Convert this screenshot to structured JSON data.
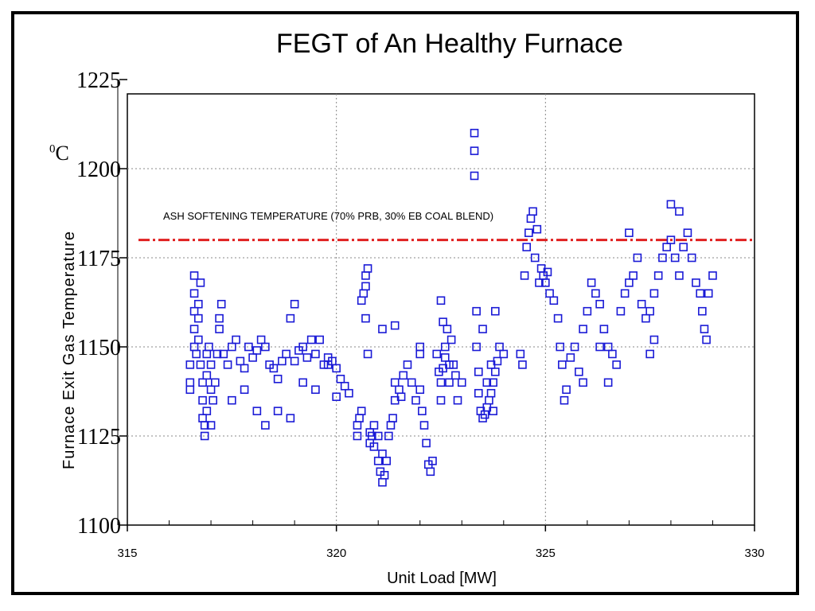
{
  "chart_data": {
    "type": "scatter",
    "title": "FEGT of An Healthy Furnace",
    "xlabel": "Unit Load [MW]",
    "ylabel": "Furnace Exit Gas Temperature",
    "y_unit_base": "C",
    "y_unit_sup": "0",
    "xlim": [
      315,
      330
    ],
    "ylim": [
      1100,
      1225
    ],
    "x_ticks": [
      315,
      320,
      325,
      330
    ],
    "y_ticks": [
      1100,
      1125,
      1150,
      1175,
      1200,
      1225
    ],
    "grid": true,
    "marker": "open-square",
    "marker_color": "#1a1ad6",
    "reference_line": {
      "label": "ASH SOFTENING TEMPERATURE (70% PRB, 30% EB COAL BLEND)",
      "y": 1180,
      "color": "#e02020"
    },
    "points": [
      [
        316.5,
        1140
      ],
      [
        316.5,
        1145
      ],
      [
        316.5,
        1138
      ],
      [
        316.6,
        1150
      ],
      [
        316.6,
        1155
      ],
      [
        316.6,
        1160
      ],
      [
        316.6,
        1165
      ],
      [
        316.6,
        1170
      ],
      [
        316.65,
        1148
      ],
      [
        316.7,
        1162
      ],
      [
        316.7,
        1158
      ],
      [
        316.7,
        1152
      ],
      [
        316.75,
        1145
      ],
      [
        316.75,
        1168
      ],
      [
        316.8,
        1140
      ],
      [
        316.8,
        1135
      ],
      [
        316.8,
        1130
      ],
      [
        316.85,
        1125
      ],
      [
        316.85,
        1128
      ],
      [
        316.9,
        1132
      ],
      [
        316.9,
        1142
      ],
      [
        316.9,
        1148
      ],
      [
        316.95,
        1150
      ],
      [
        317.0,
        1145
      ],
      [
        317.0,
        1138
      ],
      [
        317.0,
        1128
      ],
      [
        317.05,
        1135
      ],
      [
        317.1,
        1140
      ],
      [
        317.15,
        1148
      ],
      [
        317.2,
        1155
      ],
      [
        317.2,
        1158
      ],
      [
        317.25,
        1162
      ],
      [
        317.3,
        1148
      ],
      [
        317.4,
        1145
      ],
      [
        317.5,
        1150
      ],
      [
        317.6,
        1152
      ],
      [
        317.7,
        1146
      ],
      [
        317.8,
        1144
      ],
      [
        317.9,
        1150
      ],
      [
        318.0,
        1147
      ],
      [
        318.1,
        1149
      ],
      [
        318.2,
        1152
      ],
      [
        318.3,
        1150
      ],
      [
        318.4,
        1145
      ],
      [
        318.5,
        1144
      ],
      [
        318.6,
        1141
      ],
      [
        318.7,
        1146
      ],
      [
        318.8,
        1148
      ],
      [
        318.9,
        1158
      ],
      [
        319.0,
        1162
      ],
      [
        319.0,
        1146
      ],
      [
        319.1,
        1149
      ],
      [
        319.2,
        1150
      ],
      [
        319.3,
        1147
      ],
      [
        319.4,
        1152
      ],
      [
        319.5,
        1148
      ],
      [
        319.6,
        1152
      ],
      [
        319.7,
        1145
      ],
      [
        319.8,
        1147
      ],
      [
        319.9,
        1146
      ],
      [
        320.0,
        1144
      ],
      [
        320.1,
        1141
      ],
      [
        320.2,
        1139
      ],
      [
        320.3,
        1137
      ],
      [
        317.5,
        1135
      ],
      [
        317.8,
        1138
      ],
      [
        318.1,
        1132
      ],
      [
        318.3,
        1128
      ],
      [
        318.6,
        1132
      ],
      [
        318.9,
        1130
      ],
      [
        319.2,
        1140
      ],
      [
        319.5,
        1138
      ],
      [
        319.8,
        1145
      ],
      [
        320.0,
        1136
      ],
      [
        320.5,
        1128
      ],
      [
        320.5,
        1125
      ],
      [
        320.55,
        1130
      ],
      [
        320.6,
        1132
      ],
      [
        320.6,
        1163
      ],
      [
        320.65,
        1165
      ],
      [
        320.7,
        1167
      ],
      [
        320.7,
        1170
      ],
      [
        320.75,
        1172
      ],
      [
        320.7,
        1158
      ],
      [
        320.75,
        1148
      ],
      [
        320.8,
        1126
      ],
      [
        320.8,
        1123
      ],
      [
        320.85,
        1125
      ],
      [
        320.9,
        1122
      ],
      [
        320.9,
        1128
      ],
      [
        321.0,
        1125
      ],
      [
        321.0,
        1118
      ],
      [
        321.05,
        1115
      ],
      [
        321.1,
        1112
      ],
      [
        321.1,
        1120
      ],
      [
        321.15,
        1114
      ],
      [
        321.2,
        1118
      ],
      [
        321.25,
        1125
      ],
      [
        321.3,
        1128
      ],
      [
        321.35,
        1130
      ],
      [
        321.4,
        1135
      ],
      [
        321.4,
        1140
      ],
      [
        321.5,
        1138
      ],
      [
        321.55,
        1136
      ],
      [
        321.6,
        1142
      ],
      [
        321.7,
        1145
      ],
      [
        321.8,
        1140
      ],
      [
        321.9,
        1135
      ],
      [
        322.0,
        1150
      ],
      [
        322.0,
        1138
      ],
      [
        322.05,
        1132
      ],
      [
        322.1,
        1128
      ],
      [
        322.15,
        1123
      ],
      [
        322.2,
        1117
      ],
      [
        322.25,
        1115
      ],
      [
        322.3,
        1118
      ],
      [
        321.1,
        1155
      ],
      [
        321.4,
        1156
      ],
      [
        322.0,
        1148
      ],
      [
        322.4,
        1148
      ],
      [
        322.45,
        1143
      ],
      [
        322.5,
        1140
      ],
      [
        322.5,
        1135
      ],
      [
        322.55,
        1144
      ],
      [
        322.6,
        1147
      ],
      [
        322.6,
        1150
      ],
      [
        322.65,
        1155
      ],
      [
        322.7,
        1145
      ],
      [
        322.7,
        1140
      ],
      [
        322.75,
        1152
      ],
      [
        322.8,
        1145
      ],
      [
        322.85,
        1142
      ],
      [
        322.5,
        1163
      ],
      [
        322.55,
        1157
      ],
      [
        322.9,
        1135
      ],
      [
        323.0,
        1140
      ],
      [
        323.3,
        1205
      ],
      [
        323.3,
        1210
      ],
      [
        323.3,
        1198
      ],
      [
        323.35,
        1160
      ],
      [
        323.35,
        1150
      ],
      [
        323.4,
        1143
      ],
      [
        323.4,
        1137
      ],
      [
        323.45,
        1132
      ],
      [
        323.5,
        1130
      ],
      [
        323.55,
        1131
      ],
      [
        323.6,
        1133
      ],
      [
        323.65,
        1135
      ],
      [
        323.7,
        1137
      ],
      [
        323.75,
        1140
      ],
      [
        323.8,
        1143
      ],
      [
        323.85,
        1146
      ],
      [
        323.9,
        1150
      ],
      [
        323.5,
        1155
      ],
      [
        323.8,
        1160
      ],
      [
        324.0,
        1148
      ],
      [
        323.6,
        1140
      ],
      [
        323.7,
        1145
      ],
      [
        323.75,
        1132
      ],
      [
        324.4,
        1148
      ],
      [
        324.45,
        1145
      ],
      [
        324.5,
        1170
      ],
      [
        324.55,
        1178
      ],
      [
        324.6,
        1182
      ],
      [
        324.65,
        1186
      ],
      [
        324.7,
        1188
      ],
      [
        324.75,
        1175
      ],
      [
        324.8,
        1183
      ],
      [
        324.85,
        1168
      ],
      [
        324.9,
        1172
      ],
      [
        324.95,
        1170
      ],
      [
        325.0,
        1168
      ],
      [
        325.05,
        1171
      ],
      [
        325.1,
        1165
      ],
      [
        325.2,
        1163
      ],
      [
        325.3,
        1158
      ],
      [
        325.35,
        1150
      ],
      [
        325.4,
        1145
      ],
      [
        325.45,
        1135
      ],
      [
        325.5,
        1138
      ],
      [
        325.6,
        1147
      ],
      [
        325.7,
        1150
      ],
      [
        325.8,
        1143
      ],
      [
        325.9,
        1140
      ],
      [
        326.0,
        1160
      ],
      [
        326.1,
        1168
      ],
      [
        326.2,
        1165
      ],
      [
        326.3,
        1162
      ],
      [
        326.4,
        1155
      ],
      [
        326.5,
        1150
      ],
      [
        326.6,
        1148
      ],
      [
        326.7,
        1145
      ],
      [
        326.8,
        1160
      ],
      [
        326.9,
        1165
      ],
      [
        327.0,
        1168
      ],
      [
        327.1,
        1170
      ],
      [
        327.2,
        1175
      ],
      [
        327.0,
        1182
      ],
      [
        327.3,
        1162
      ],
      [
        327.4,
        1158
      ],
      [
        327.5,
        1160
      ],
      [
        327.6,
        1165
      ],
      [
        327.7,
        1170
      ],
      [
        327.8,
        1175
      ],
      [
        327.9,
        1178
      ],
      [
        328.0,
        1180
      ],
      [
        328.1,
        1175
      ],
      [
        328.2,
        1170
      ],
      [
        328.3,
        1178
      ],
      [
        328.4,
        1182
      ],
      [
        328.5,
        1175
      ],
      [
        328.6,
        1168
      ],
      [
        328.7,
        1165
      ],
      [
        328.75,
        1160
      ],
      [
        328.8,
        1155
      ],
      [
        328.85,
        1152
      ],
      [
        328.9,
        1165
      ],
      [
        329.0,
        1170
      ],
      [
        328.0,
        1190
      ],
      [
        328.2,
        1188
      ],
      [
        327.5,
        1148
      ],
      [
        327.6,
        1152
      ],
      [
        326.5,
        1140
      ],
      [
        326.3,
        1150
      ],
      [
        325.9,
        1155
      ]
    ]
  }
}
